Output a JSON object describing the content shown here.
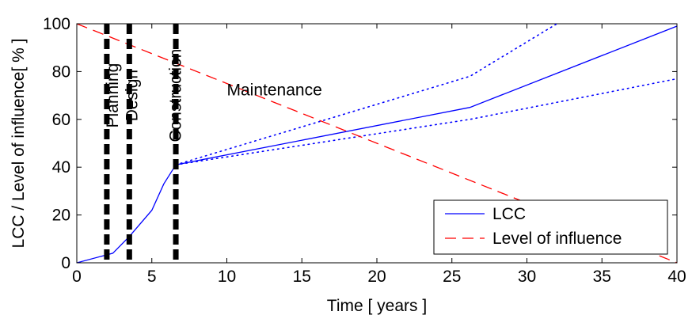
{
  "chart_data": {
    "type": "line",
    "xlabel": "Time [ years ]",
    "ylabel": "LCC / Level of influence[ % ]",
    "xlim": [
      0,
      40
    ],
    "ylim": [
      0,
      100
    ],
    "xticks": [
      0,
      5,
      10,
      15,
      20,
      25,
      30,
      35,
      40
    ],
    "yticks": [
      0,
      20,
      40,
      60,
      80,
      100
    ],
    "grid": false,
    "legend_position": "bottom-right",
    "series": [
      {
        "name": "LCC",
        "style": "solid",
        "color": "#0000ff",
        "x": [
          0,
          2.4,
          3.5,
          5,
          5.8,
          6.6,
          26.2,
          40
        ],
        "y": [
          0,
          4,
          11,
          22,
          33,
          41,
          65,
          99
        ]
      },
      {
        "name": "Level of influence",
        "style": "dashed",
        "color": "#ff0000",
        "x": [
          0,
          40
        ],
        "y": [
          100,
          0
        ]
      },
      {
        "style": "dotted",
        "color": "#0000ff",
        "x": [
          6.6,
          26.2,
          32
        ],
        "y": [
          41,
          78,
          100
        ]
      },
      {
        "style": "dotted",
        "color": "#0000ff",
        "x": [
          6.6,
          26.2,
          40
        ],
        "y": [
          41,
          60,
          77
        ]
      }
    ],
    "phase_lines": [
      2,
      3.5,
      6.6
    ],
    "annotations": [
      {
        "text": "Planning",
        "x": 2,
        "y": 70,
        "rotation": -90
      },
      {
        "text": "Design",
        "x": 3.3,
        "y": 70,
        "rotation": -90
      },
      {
        "text": "Construction",
        "x": 6.2,
        "y": 70,
        "rotation": -90
      },
      {
        "text": "Maintenance",
        "x": 10,
        "y": 70,
        "rotation": 0
      }
    ]
  }
}
